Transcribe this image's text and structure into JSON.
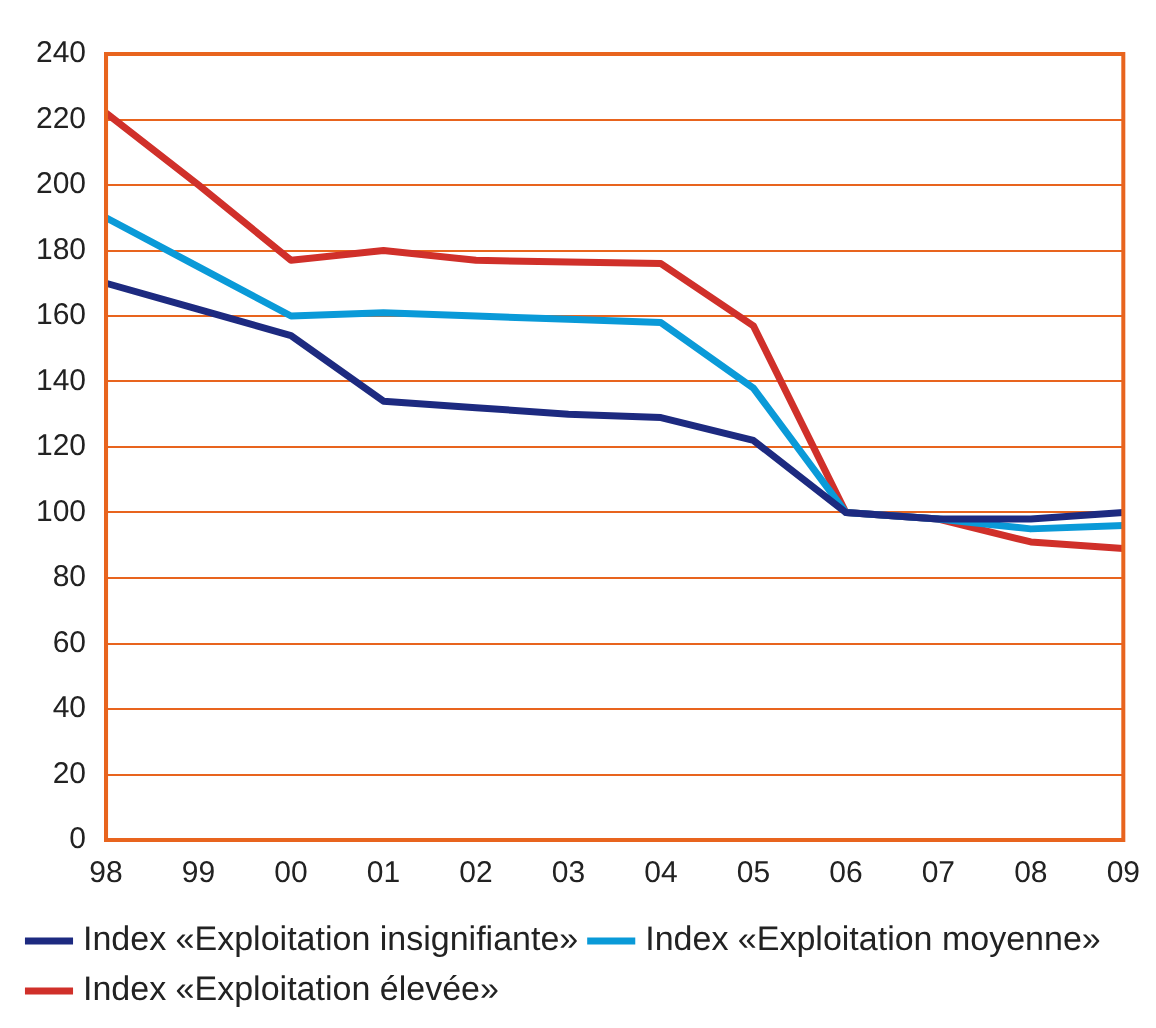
{
  "chart_data": {
    "type": "line",
    "categories": [
      "98",
      "99",
      "00",
      "01",
      "02",
      "03",
      "04",
      "05",
      "06",
      "07",
      "08",
      "09"
    ],
    "series": [
      {
        "name": "Index «Exploitation insignifiante»",
        "color": "#1d2a80",
        "values": [
          170,
          162,
          154,
          134,
          132,
          130,
          129,
          122,
          100,
          98,
          98,
          100
        ]
      },
      {
        "name": "Index «Exploitation moyenne»",
        "color": "#0a9ad8",
        "values": [
          190,
          175,
          160,
          161,
          160,
          159,
          158,
          138,
          100,
          98,
          95,
          96
        ]
      },
      {
        "name": "Index «Exploitation élevée»",
        "color": "#d0302a",
        "values": [
          222,
          200,
          177,
          180,
          177,
          176.5,
          176,
          157,
          100,
          98,
          91,
          89
        ]
      }
    ],
    "ylim": [
      0,
      240
    ],
    "yticks": [
      0,
      20,
      40,
      60,
      80,
      100,
      120,
      140,
      160,
      180,
      200,
      220,
      240
    ],
    "grid": "y",
    "legend": "bottom",
    "marker": "none",
    "line_style": "solid"
  }
}
